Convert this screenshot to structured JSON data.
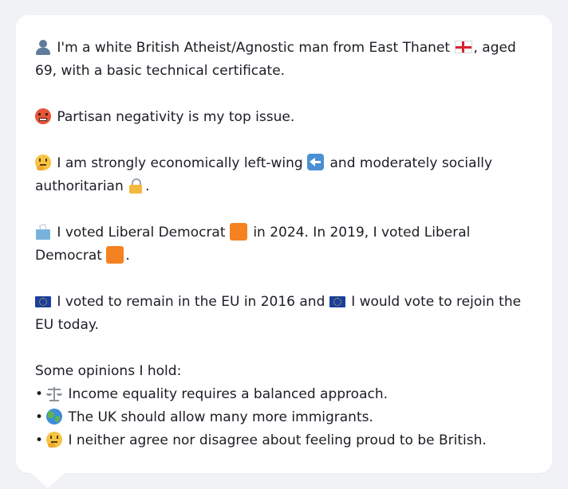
{
  "profile": {
    "intro_part1": "I'm a white British Atheist/Agnostic man from East Thanet",
    "intro_part2": ", aged 69, with a basic technical certificate.",
    "top_issue": "Partisan negativity is my top issue.",
    "economic_part1": "I am strongly economically left-wing",
    "economic_part2": "and moderately socially authoritarian",
    "economic_period": ".",
    "vote_part1": "I voted Liberal Democrat",
    "vote_part2": "in 2024. In 2019, I voted Liberal Democrat",
    "vote_period": ".",
    "eu_part1": "I voted to remain in the EU in 2016 and",
    "eu_part2": "I would vote to rejoin the EU today.",
    "opinions_heading": "Some opinions I hold:",
    "bullet_char": "•",
    "opinions": [
      "Income equality requires a balanced approach.",
      "The UK should allow many more immigrants.",
      "I neither agree nor disagree about feeling proud to be British."
    ]
  },
  "icons": {
    "person": "person-silhouette-icon",
    "england_flag": "england-flag-icon",
    "angry_face": "angry-face-icon",
    "thinking_face": "thinking-face-icon",
    "left_arrow": "left-arrow-key-icon",
    "lock": "padlock-icon",
    "ballot_box": "ballot-box-icon",
    "orange_square": "orange-square-icon",
    "eu_flag": "eu-flag-icon",
    "scales": "balance-scale-icon",
    "globe": "globe-icon"
  },
  "colors": {
    "background": "#f1f2f5",
    "card": "#ffffff",
    "text": "#1b1d24",
    "lib_dem_orange": "#f58220"
  }
}
